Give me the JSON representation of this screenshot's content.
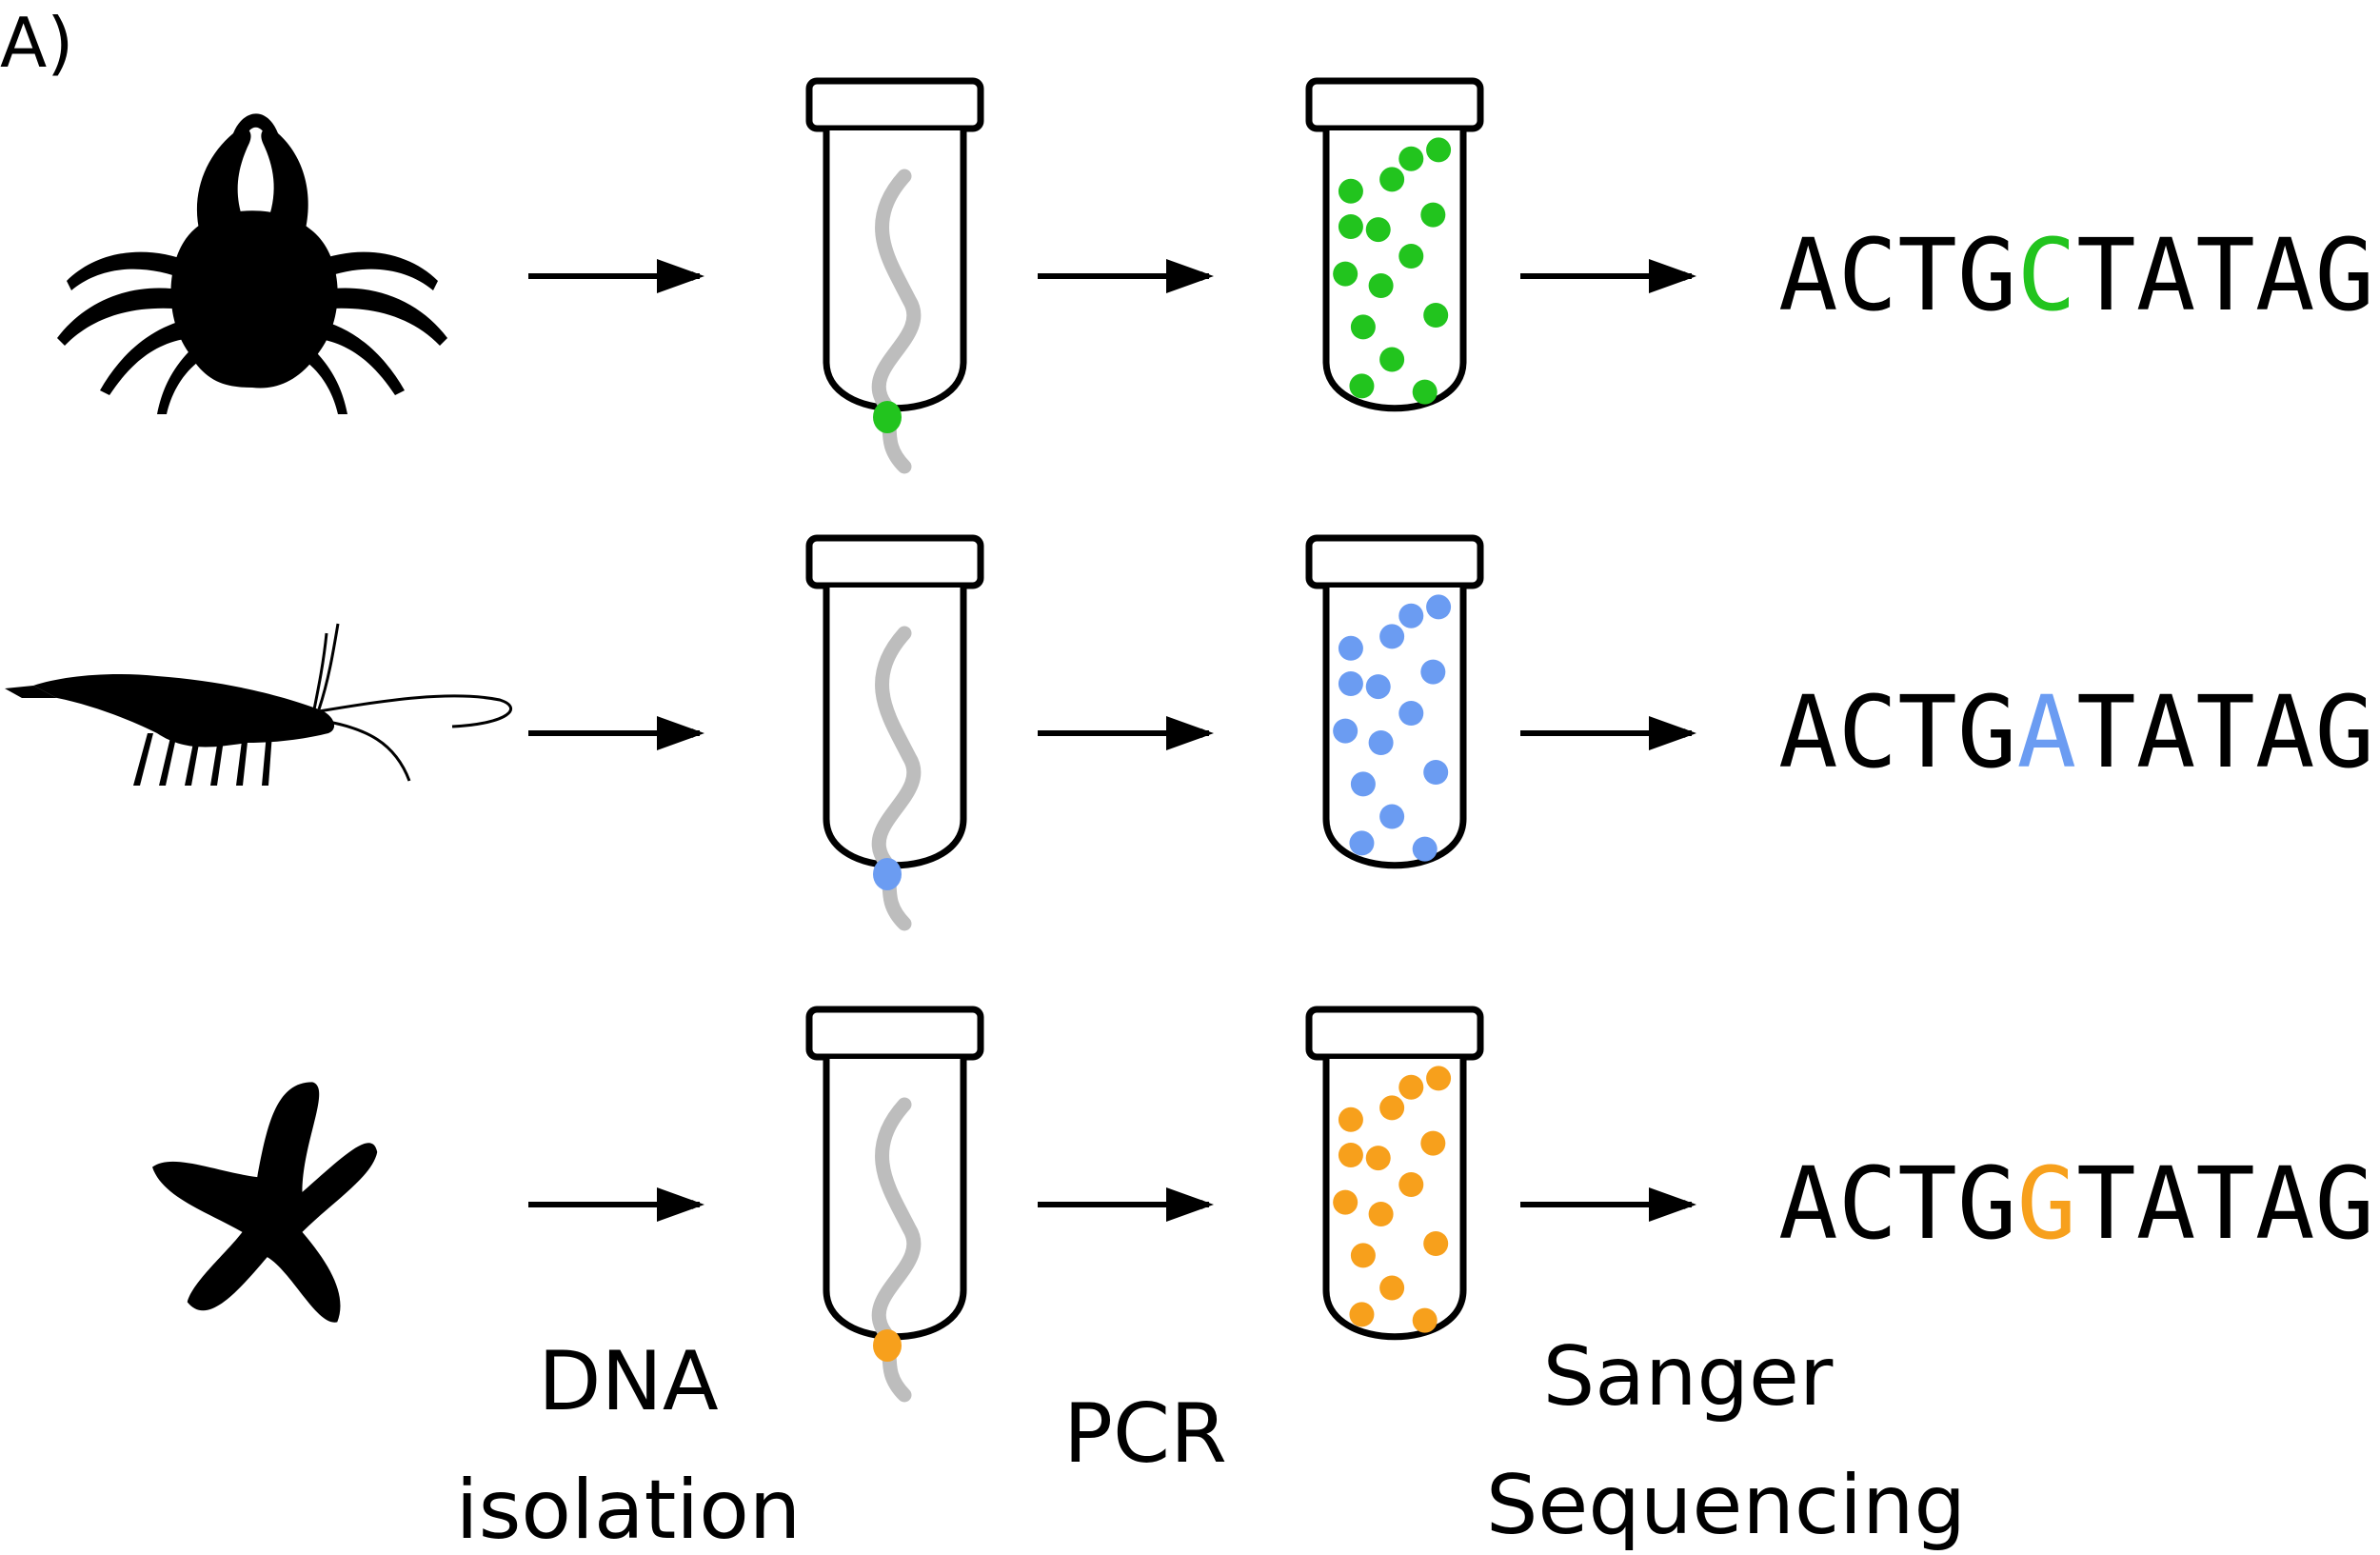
{
  "panel_label": "A)",
  "colors": {
    "green": "#22c41e",
    "blue": "#6b9cf2",
    "orange": "#f7a01c",
    "ink": "#000000",
    "strand": "#bdbdbd"
  },
  "rows": [
    {
      "organism": "crab-icon",
      "sequence": {
        "before": "ACTG",
        "variant": "C",
        "after": "TATAG"
      },
      "color_key": "green"
    },
    {
      "organism": "shrimp-icon",
      "sequence": {
        "before": "ACTG",
        "variant": "A",
        "after": "TATAG"
      },
      "color_key": "blue"
    },
    {
      "organism": "starfish-icon",
      "sequence": {
        "before": "ACTG",
        "variant": "G",
        "after": "TATAG"
      },
      "color_key": "orange"
    }
  ],
  "steps": {
    "dna_isolation": {
      "line1": "DNA",
      "line2": "isolation"
    },
    "pcr": {
      "line1": "PCR"
    },
    "sanger": {
      "line1": "Sanger",
      "line2": "Sequencing"
    }
  }
}
